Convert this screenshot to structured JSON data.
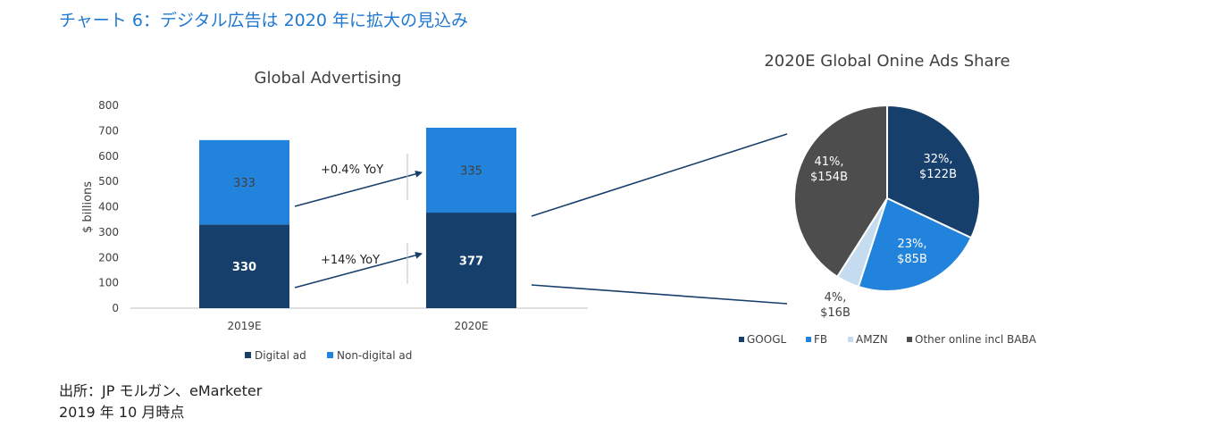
{
  "page": {
    "title": "チャート 6：デジタル広告は 2020 年に拡大の見込み",
    "source_line1": "出所：JP モルガン、eMarketer",
    "source_line2": "2019 年 10 月時点"
  },
  "colors": {
    "title_blue": "#1f78d1",
    "digital_dark": "#173f6b",
    "non_digital_blue": "#2283dc",
    "googl": "#173f6b",
    "fb": "#2283dc",
    "amzn": "#c5dcf0",
    "other": "#4d4d4d",
    "arrow": "#173f6b"
  },
  "chart_data": [
    {
      "type": "bar",
      "stacked": true,
      "title": "Global Advertising",
      "ylabel": "$ billions",
      "ylim": [
        0,
        800
      ],
      "yticks": [
        0,
        100,
        200,
        300,
        400,
        500,
        600,
        700,
        800
      ],
      "categories": [
        "2019E",
        "2020E"
      ],
      "series": [
        {
          "name": "Digital ad",
          "values": [
            330,
            377
          ]
        },
        {
          "name": "Non-digital ad",
          "values": [
            333,
            335
          ]
        }
      ],
      "annotations": [
        "+0.4% YoY",
        "+14% YoY"
      ],
      "legend_position": "bottom",
      "grid": false
    },
    {
      "type": "pie",
      "title": "2020E Global Onine Ads Share",
      "slices": [
        {
          "name": "GOOGL",
          "percent": 32,
          "label_pct": "32%,",
          "label_value": "$122B"
        },
        {
          "name": "FB",
          "percent": 23,
          "label_pct": "23%,",
          "label_value": "$85B"
        },
        {
          "name": "AMZN",
          "percent": 4,
          "label_pct": "4%,",
          "label_value": "$16B"
        },
        {
          "name": "Other online incl BABA",
          "percent": 41,
          "label_pct": "41%,",
          "label_value": "$154B"
        }
      ],
      "legend_position": "bottom"
    }
  ]
}
